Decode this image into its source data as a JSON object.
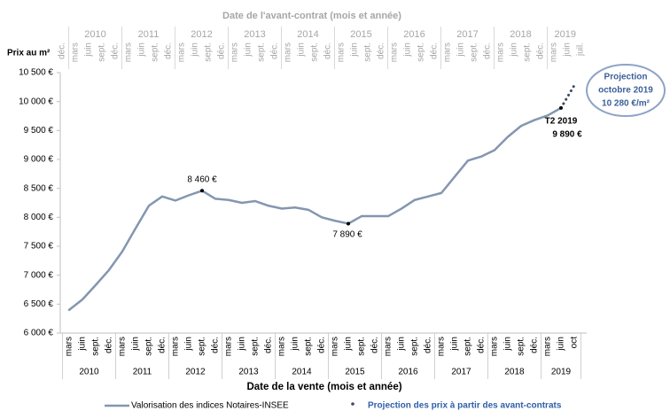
{
  "chart_data": {
    "type": "line",
    "top_axis": {
      "title": "Date de l'avant-contrat (mois et année)",
      "years": [
        "2010",
        "2011",
        "2012",
        "2013",
        "2014",
        "2015",
        "2016",
        "2017",
        "2018",
        "2019"
      ],
      "months": [
        "déc.",
        "mars",
        "juin",
        "sept.",
        "déc.",
        "mars",
        "juin",
        "sept.",
        "déc.",
        "mars",
        "juin",
        "sept.",
        "déc.",
        "mars",
        "juin",
        "sept.",
        "déc.",
        "mars",
        "juin",
        "sept.",
        "déc.",
        "mars",
        "juin",
        "sept.",
        "déc.",
        "mars",
        "juin",
        "sept.",
        "déc.",
        "mars",
        "juin",
        "sept.",
        "déc.",
        "mars",
        "juin",
        "sept.",
        "déc.",
        "mars",
        "juin",
        "juil."
      ]
    },
    "y_axis_label": "Prix au m²",
    "xlabel": "Date de la vente (mois et année)",
    "years": [
      "2010",
      "2011",
      "2012",
      "2013",
      "2014",
      "2015",
      "2016",
      "2017",
      "2018",
      "2019"
    ],
    "categories": [
      "mars",
      "juin",
      "sept.",
      "déc.",
      "mars",
      "juin",
      "sept.",
      "déc.",
      "mars",
      "juin",
      "sept.",
      "déc.",
      "mars",
      "juin",
      "sept.",
      "déc.",
      "mars",
      "juin",
      "sept.",
      "déc.",
      "mars",
      "juin",
      "sept.",
      "déc.",
      "mars",
      "juin",
      "sept.",
      "déc.",
      "mars",
      "juin",
      "sept.",
      "déc.",
      "mars",
      "juin",
      "sept.",
      "déc.",
      "mars",
      "juin",
      "oct"
    ],
    "series": [
      {
        "name": "Valorisation des indices Notaires-INSEE",
        "color": "#8496b0",
        "values": [
          6400,
          6580,
          6830,
          7090,
          7410,
          7810,
          8200,
          8360,
          8290,
          8380,
          8460,
          8320,
          8300,
          8250,
          8280,
          8200,
          8150,
          8170,
          8130,
          8000,
          7940,
          7890,
          8020,
          8020,
          8020,
          8150,
          8300,
          8360,
          8420,
          8700,
          8980,
          9050,
          9160,
          9390,
          9580,
          9680,
          9760,
          9890,
          null
        ]
      },
      {
        "name": "Projection des prix à partir des avant-contrats",
        "color": "#3b4a63",
        "style": "dotted",
        "values": [
          null,
          null,
          null,
          null,
          null,
          null,
          null,
          null,
          null,
          null,
          null,
          null,
          null,
          null,
          null,
          null,
          null,
          null,
          null,
          null,
          null,
          null,
          null,
          null,
          null,
          null,
          null,
          null,
          null,
          null,
          null,
          null,
          null,
          null,
          null,
          null,
          null,
          9890,
          10280
        ]
      }
    ],
    "ylim": [
      6000,
      10500
    ],
    "yticks": [
      {
        "value": 6000,
        "label": "6 000 €"
      },
      {
        "value": 6500,
        "label": "6 500 €"
      },
      {
        "value": 7000,
        "label": "7 000 €"
      },
      {
        "value": 7500,
        "label": "7 500 €"
      },
      {
        "value": 8000,
        "label": "8 000 €"
      },
      {
        "value": 8500,
        "label": "8 500 €"
      },
      {
        "value": 9000,
        "label": "9 000 €"
      },
      {
        "value": 9500,
        "label": "9 500 €"
      },
      {
        "value": 10000,
        "label": "10 000 €"
      },
      {
        "value": 10500,
        "label": "10 500 €"
      }
    ],
    "annotations": [
      "8 460 €",
      "7 890 €",
      "T2 2019",
      "9 890 €",
      "Projection",
      "octobre 2019",
      "10 280 €/m²"
    ]
  }
}
